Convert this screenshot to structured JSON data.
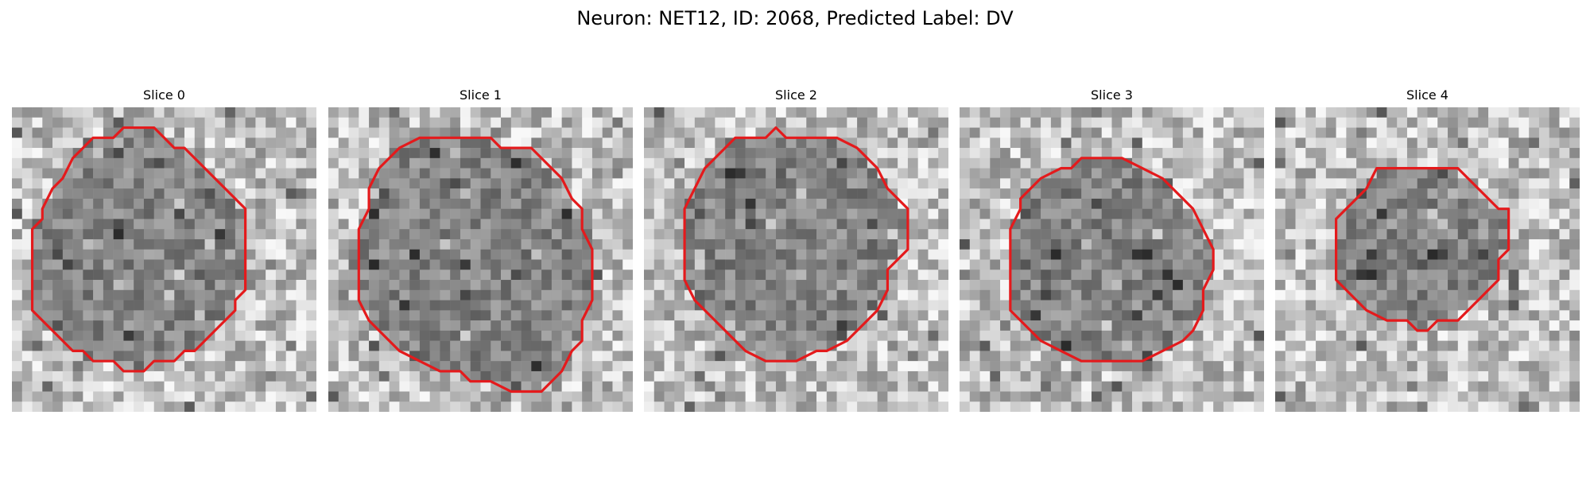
{
  "figure": {
    "title": "Neuron: NET12, ID: 2068, Predicted Label: DV"
  },
  "panels": [
    {
      "title": "Slice 0",
      "contour_color": "#e41a1c",
      "seed": 11,
      "contour": [
        [
          13,
          2
        ],
        [
          14,
          2
        ],
        [
          15,
          3
        ],
        [
          16,
          4
        ],
        [
          17,
          4
        ],
        [
          18,
          5
        ],
        [
          19,
          6
        ],
        [
          20,
          7
        ],
        [
          21,
          8
        ],
        [
          22,
          9
        ],
        [
          23,
          10
        ],
        [
          23,
          12
        ],
        [
          23,
          14
        ],
        [
          23,
          16
        ],
        [
          23,
          18
        ],
        [
          22,
          19
        ],
        [
          22,
          20
        ],
        [
          21,
          21
        ],
        [
          20,
          22
        ],
        [
          19,
          23
        ],
        [
          18,
          24
        ],
        [
          17,
          24
        ],
        [
          16,
          25
        ],
        [
          14,
          25
        ],
        [
          13,
          26
        ],
        [
          11,
          26
        ],
        [
          10,
          25
        ],
        [
          8,
          25
        ],
        [
          7,
          24
        ],
        [
          6,
          24
        ],
        [
          5,
          23
        ],
        [
          4,
          22
        ],
        [
          3,
          21
        ],
        [
          2,
          20
        ],
        [
          2,
          18
        ],
        [
          2,
          16
        ],
        [
          2,
          14
        ],
        [
          2,
          12
        ],
        [
          3,
          11
        ],
        [
          3,
          10
        ],
        [
          4,
          8
        ],
        [
          5,
          7
        ],
        [
          6,
          5
        ],
        [
          7,
          4
        ],
        [
          8,
          3
        ],
        [
          10,
          3
        ],
        [
          11,
          2
        ]
      ]
    },
    {
      "title": "Slice 1",
      "contour_color": "#e41a1c",
      "seed": 23,
      "contour": [
        [
          10,
          3
        ],
        [
          16,
          3
        ],
        [
          17,
          4
        ],
        [
          20,
          4
        ],
        [
          22,
          6
        ],
        [
          23,
          7
        ],
        [
          24,
          9
        ],
        [
          25,
          10
        ],
        [
          25,
          12
        ],
        [
          26,
          14
        ],
        [
          26,
          17
        ],
        [
          26,
          19
        ],
        [
          25,
          21
        ],
        [
          25,
          23
        ],
        [
          24,
          24
        ],
        [
          23,
          26
        ],
        [
          22,
          27
        ],
        [
          21,
          28
        ],
        [
          18,
          28
        ],
        [
          16,
          27
        ],
        [
          14,
          27
        ],
        [
          13,
          26
        ],
        [
          11,
          26
        ],
        [
          9,
          25
        ],
        [
          7,
          24
        ],
        [
          6,
          23
        ],
        [
          5,
          22
        ],
        [
          4,
          21
        ],
        [
          3,
          19
        ],
        [
          3,
          17
        ],
        [
          3,
          14
        ],
        [
          3,
          12
        ],
        [
          4,
          10
        ],
        [
          4,
          8
        ],
        [
          5,
          6
        ],
        [
          6,
          5
        ],
        [
          7,
          4
        ],
        [
          9,
          3
        ]
      ]
    },
    {
      "title": "Slice 2",
      "contour_color": "#e41a1c",
      "seed": 37,
      "contour": [
        [
          13,
          2
        ],
        [
          14,
          3
        ],
        [
          17,
          3
        ],
        [
          19,
          3
        ],
        [
          21,
          4
        ],
        [
          22,
          5
        ],
        [
          23,
          6
        ],
        [
          24,
          8
        ],
        [
          25,
          9
        ],
        [
          26,
          10
        ],
        [
          26,
          12
        ],
        [
          26,
          14
        ],
        [
          25,
          15
        ],
        [
          24,
          16
        ],
        [
          24,
          18
        ],
        [
          23,
          20
        ],
        [
          22,
          21
        ],
        [
          21,
          22
        ],
        [
          20,
          23
        ],
        [
          18,
          24
        ],
        [
          17,
          24
        ],
        [
          15,
          25
        ],
        [
          12,
          25
        ],
        [
          10,
          24
        ],
        [
          9,
          23
        ],
        [
          8,
          22
        ],
        [
          7,
          21
        ],
        [
          6,
          20
        ],
        [
          5,
          19
        ],
        [
          4,
          17
        ],
        [
          4,
          15
        ],
        [
          4,
          12
        ],
        [
          4,
          10
        ],
        [
          5,
          8
        ],
        [
          6,
          6
        ],
        [
          7,
          5
        ],
        [
          8,
          4
        ],
        [
          9,
          3
        ],
        [
          12,
          3
        ]
      ]
    },
    {
      "title": "Slice 3",
      "contour_color": "#e41a1c",
      "seed": 53,
      "contour": [
        [
          12,
          5
        ],
        [
          16,
          5
        ],
        [
          18,
          6
        ],
        [
          20,
          7
        ],
        [
          21,
          8
        ],
        [
          22,
          9
        ],
        [
          23,
          10
        ],
        [
          24,
          12
        ],
        [
          25,
          14
        ],
        [
          25,
          16
        ],
        [
          24,
          18
        ],
        [
          24,
          20
        ],
        [
          23,
          22
        ],
        [
          22,
          23
        ],
        [
          20,
          24
        ],
        [
          18,
          25
        ],
        [
          12,
          25
        ],
        [
          10,
          24
        ],
        [
          8,
          23
        ],
        [
          7,
          22
        ],
        [
          6,
          21
        ],
        [
          5,
          20
        ],
        [
          5,
          18
        ],
        [
          5,
          16
        ],
        [
          5,
          14
        ],
        [
          5,
          12
        ],
        [
          6,
          10
        ],
        [
          6,
          9
        ],
        [
          7,
          8
        ],
        [
          8,
          7
        ],
        [
          10,
          6
        ],
        [
          11,
          6
        ]
      ]
    },
    {
      "title": "Slice 4",
      "contour_color": "#e41a1c",
      "seed": 71,
      "contour": [
        [
          10,
          6
        ],
        [
          18,
          6
        ],
        [
          19,
          7
        ],
        [
          20,
          8
        ],
        [
          21,
          9
        ],
        [
          22,
          10
        ],
        [
          23,
          10
        ],
        [
          23,
          12
        ],
        [
          23,
          14
        ],
        [
          22,
          15
        ],
        [
          22,
          17
        ],
        [
          21,
          18
        ],
        [
          20,
          19
        ],
        [
          19,
          20
        ],
        [
          18,
          21
        ],
        [
          16,
          21
        ],
        [
          15,
          22
        ],
        [
          14,
          22
        ],
        [
          13,
          21
        ],
        [
          11,
          21
        ],
        [
          9,
          20
        ],
        [
          8,
          19
        ],
        [
          7,
          18
        ],
        [
          6,
          17
        ],
        [
          6,
          15
        ],
        [
          6,
          13
        ],
        [
          6,
          11
        ],
        [
          7,
          10
        ],
        [
          8,
          9
        ],
        [
          9,
          8
        ]
      ]
    }
  ]
}
